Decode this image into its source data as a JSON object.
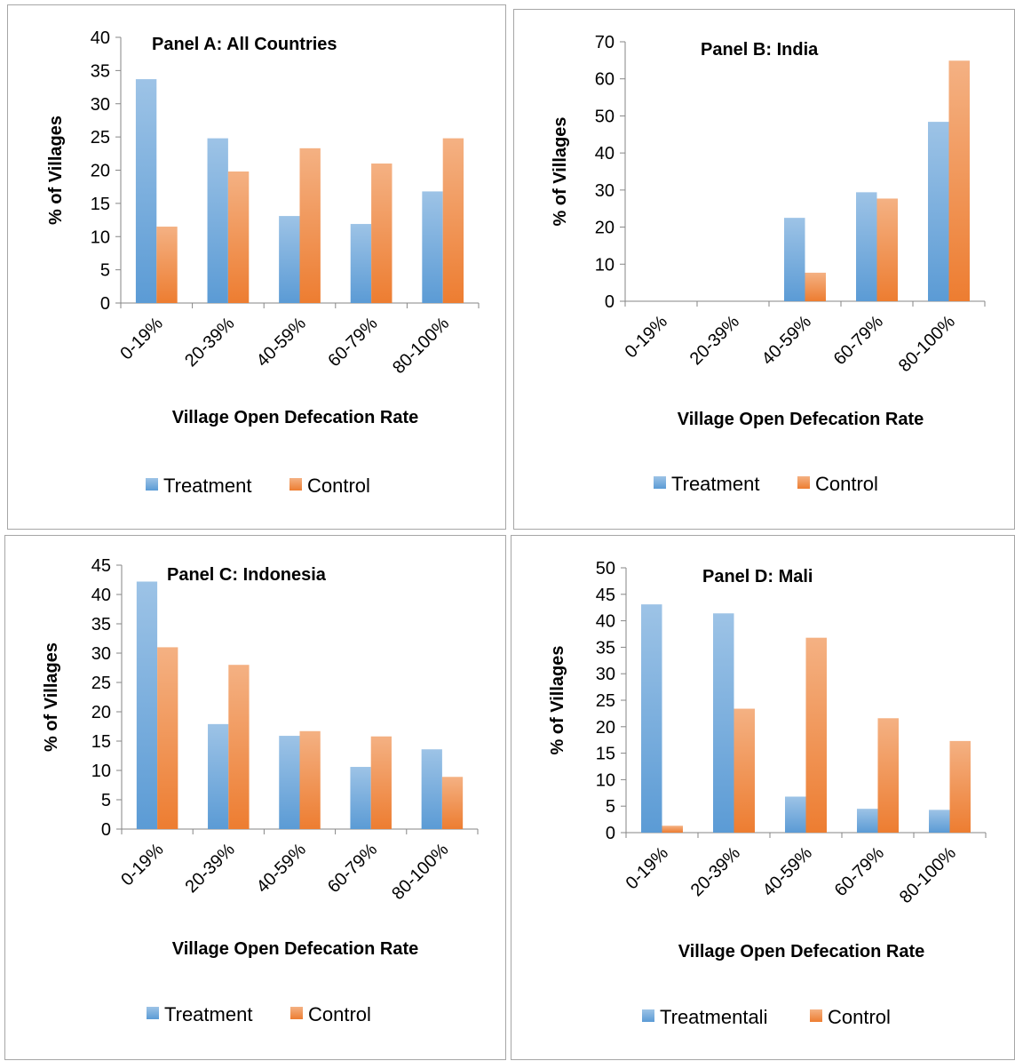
{
  "chart_data": [
    {
      "type": "bar",
      "title": "Panel A: All Countries",
      "xlabel": "Village Open Defecation Rate",
      "ylabel": "% of Villages",
      "ylim": [
        0,
        40
      ],
      "yticks": [
        0,
        5,
        10,
        15,
        20,
        25,
        30,
        35,
        40
      ],
      "categories": [
        "0-19%",
        "20-39%",
        "40-59%",
        "60-79%",
        "80-100%"
      ],
      "series": [
        {
          "name": "Treatment",
          "values": [
            33.7,
            24.8,
            13.1,
            11.9,
            16.8
          ]
        },
        {
          "name": "Control",
          "values": [
            11.5,
            19.8,
            23.3,
            21.0,
            24.8
          ]
        }
      ],
      "legend": "bottom"
    },
    {
      "type": "bar",
      "title": "Panel B: India",
      "xlabel": "Village Open Defecation Rate",
      "ylabel": "% of Villages",
      "ylim": [
        0,
        70
      ],
      "yticks": [
        0,
        10,
        20,
        30,
        40,
        50,
        60,
        70
      ],
      "categories": [
        "0-19%",
        "20-39%",
        "40-59%",
        "60-79%",
        "80-100%"
      ],
      "series": [
        {
          "name": "Treatment",
          "values": [
            0,
            0,
            22.5,
            29.4,
            48.4
          ]
        },
        {
          "name": "Control",
          "values": [
            0,
            0,
            7.7,
            27.7,
            64.9
          ]
        }
      ],
      "legend": "bottom"
    },
    {
      "type": "bar",
      "title": "Panel C: Indonesia",
      "xlabel": "Village Open Defecation Rate",
      "ylabel": "% of Villages",
      "ylim": [
        0,
        45
      ],
      "yticks": [
        0,
        5,
        10,
        15,
        20,
        25,
        30,
        35,
        40,
        45
      ],
      "categories": [
        "0-19%",
        "20-39%",
        "40-59%",
        "60-79%",
        "80-100%"
      ],
      "series": [
        {
          "name": "Treatment",
          "values": [
            42.2,
            17.9,
            15.9,
            10.6,
            13.6
          ]
        },
        {
          "name": "Control",
          "values": [
            31.0,
            28.0,
            16.7,
            15.8,
            8.9
          ]
        }
      ],
      "legend": "bottom"
    },
    {
      "type": "bar",
      "title": "Panel D: Mali",
      "xlabel": "Village Open Defecation Rate",
      "ylabel": "% of Villages",
      "ylim": [
        0,
        50
      ],
      "yticks": [
        0,
        5,
        10,
        15,
        20,
        25,
        30,
        35,
        40,
        45,
        50
      ],
      "categories": [
        "0-19%",
        "20-39%",
        "40-59%",
        "60-79%",
        "80-100%"
      ],
      "series": [
        {
          "name": "Treatmentali",
          "values": [
            43.1,
            41.4,
            6.8,
            4.5,
            4.3
          ]
        },
        {
          "name": "Control",
          "values": [
            1.3,
            23.4,
            36.8,
            21.6,
            17.3
          ]
        }
      ],
      "legend": "bottom"
    }
  ],
  "colors": {
    "treatment_light": "#9dc3e6",
    "treatment_dark": "#5b9bd5",
    "control_light": "#f4b183",
    "control_dark": "#ed7d31",
    "axis": "#868686",
    "border": "#a6a6a6"
  }
}
